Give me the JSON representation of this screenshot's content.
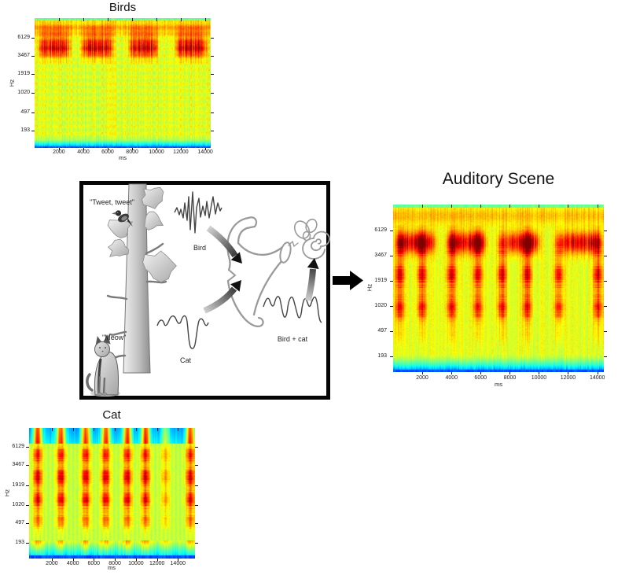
{
  "panels": {
    "birds": {
      "title": "Birds",
      "y_axis_label": "Hz",
      "x_axis_label": "ms",
      "y_ticks": [
        "6129",
        "3467",
        "1919",
        "1020",
        "497",
        "193"
      ],
      "x_ticks": [
        "2000",
        "4000",
        "6000",
        "8000",
        "10000",
        "12000",
        "14000"
      ]
    },
    "cat": {
      "title": "Cat",
      "y_axis_label": "Hz",
      "x_axis_label": "ms",
      "y_ticks": [
        "6129",
        "3467",
        "1919",
        "1020",
        "497",
        "193"
      ],
      "x_ticks": [
        "2000",
        "4000",
        "6000",
        "8000",
        "10000",
        "12000",
        "14000"
      ]
    },
    "auditory_scene": {
      "title": "Auditory Scene",
      "y_axis_label": "Hz",
      "x_axis_label": "ms",
      "y_ticks": [
        "6129",
        "3467",
        "1919",
        "1020",
        "497",
        "193"
      ],
      "x_ticks": [
        "2000",
        "4000",
        "6000",
        "8000",
        "10000",
        "12000",
        "14000"
      ]
    }
  },
  "cartoon": {
    "bird_speech_label": "\"Tweet, tweet\"",
    "cat_speech_label": "\"Meow\"",
    "bird_waveform_label": "Bird",
    "cat_waveform_label": "Cat",
    "mixture_waveform_label": "Bird + cat"
  },
  "colors": {
    "box_border": "#000000",
    "arrow": "#000000",
    "colormap": "jet",
    "spectrogram_hot": "#a50000",
    "spectrogram_warm": "#ff6a00",
    "spectrogram_mid": "#ffe600",
    "spectrogram_green": "#9be24a",
    "spectrogram_cyan": "#00e5ff",
    "spectrogram_blue": "#0033cc"
  },
  "chart_data": [
    {
      "type": "heatmap",
      "title": "Birds",
      "xlabel": "ms",
      "ylabel": "Hz",
      "x_ticks": [
        2000,
        4000,
        6000,
        8000,
        10000,
        12000,
        14000
      ],
      "y_ticks": [
        6129,
        3467,
        1919,
        1020,
        497,
        193
      ],
      "x_range": [
        0,
        14500
      ],
      "colormap": "jet",
      "description": "Spectrogram of bird song: high-energy (dark red) chirp band around 3500-6100 Hz occurring in bursts over a uniform yellow-green background, with low energy (cyan/blue) at the bottom edge.",
      "bird_chirp_bursts_ms": [
        [
          300,
          3100
        ],
        [
          3700,
          6600
        ],
        [
          7600,
          10200
        ],
        [
          11400,
          14300
        ]
      ]
    },
    {
      "type": "heatmap",
      "title": "Cat",
      "xlabel": "ms",
      "ylabel": "Hz",
      "x_ticks": [
        2000,
        4000,
        6000,
        8000,
        10000,
        12000,
        14000
      ],
      "y_ticks": [
        6129,
        3467,
        1919,
        1020,
        497,
        193
      ],
      "x_range": [
        0,
        14500
      ],
      "colormap": "jet",
      "description": "Spectrogram of repeated cat meows: eight broadband vertical high-energy (red) streaks spanning roughly 200-6000 Hz separated by quieter yellow gaps, with blue regions above 6129 Hz between meows.",
      "meow_times_ms": [
        750,
        2800,
        4900,
        6650,
        8550,
        10150,
        11900,
        14050
      ]
    },
    {
      "type": "heatmap",
      "title": "Auditory Scene",
      "xlabel": "ms",
      "ylabel": "Hz",
      "x_ticks": [
        2000,
        4000,
        6000,
        8000,
        10000,
        12000,
        14000
      ],
      "y_ticks": [
        6129,
        3467,
        1919,
        1020,
        497,
        193
      ],
      "x_range": [
        0,
        14500
      ],
      "colormap": "jet",
      "description": "Mixture spectrogram containing both the bird chirp band near 4000-6000 Hz and the vertical cat-meow streaks below about 3500 Hz.",
      "bird_chirp_bursts_ms": [
        [
          300,
          3100
        ],
        [
          3700,
          6600
        ],
        [
          7600,
          10200
        ],
        [
          11400,
          14300
        ]
      ],
      "meow_times_ms": [
        450,
        1950,
        3950,
        5800,
        7450,
        9200,
        11350,
        14000
      ]
    }
  ]
}
